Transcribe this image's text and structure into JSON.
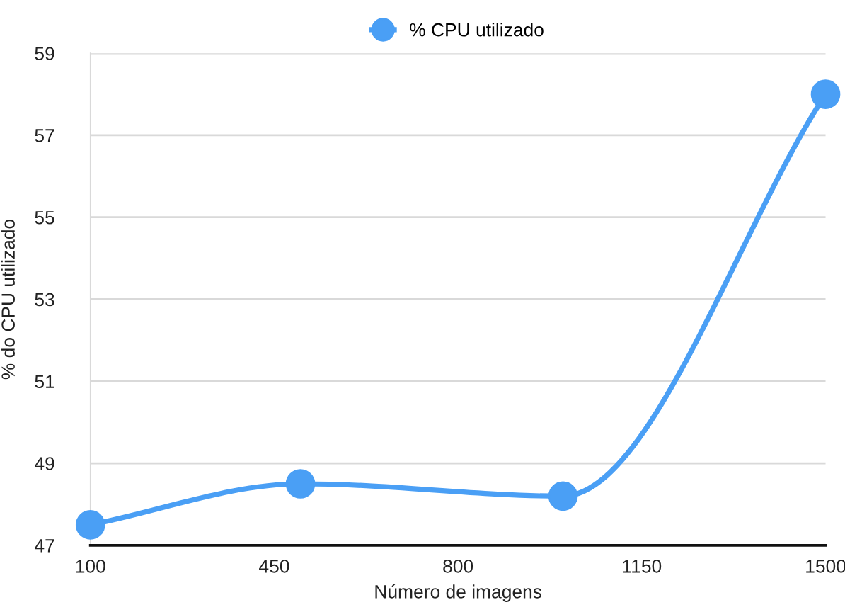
{
  "chart_data": {
    "type": "line",
    "xlabel": "Número de imagens",
    "ylabel": "% do CPU utilizado",
    "x": [
      100,
      500,
      1000,
      1500
    ],
    "series": [
      {
        "name": "% CPU utilizado",
        "color": "#4a9ff5",
        "values": [
          47.5,
          48.5,
          48.2,
          58
        ]
      }
    ],
    "xlim": [
      100,
      1500
    ],
    "xticks": [
      100,
      450,
      800,
      1150,
      1500
    ],
    "ylim": [
      47,
      59
    ],
    "yticks": [
      47,
      49,
      51,
      53,
      55,
      57,
      59
    ],
    "grid": "y",
    "legend": "top",
    "marker": "circle",
    "line_style": "solid"
  }
}
